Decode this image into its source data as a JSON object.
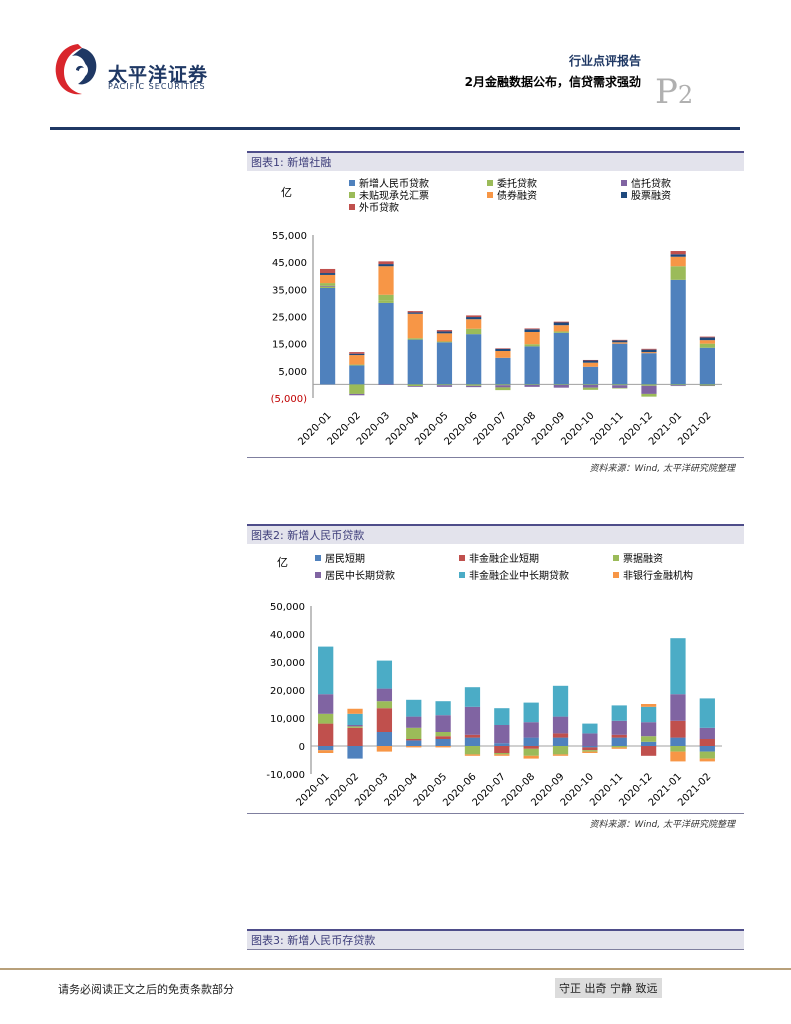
{
  "header": {
    "company_name": "太平洋证券",
    "company_name_en": "PACIFIC SECURITIES",
    "report_type": "行业点评报告",
    "report_title": "2月金融数据公布，信贷需求强劲",
    "page_letter": "P",
    "page_number": "2"
  },
  "figures": [
    {
      "title": "图表1:  新增社融",
      "source": "资料来源：Wind, 太平洋研究院整理"
    },
    {
      "title": "图表2:  新增人民币贷款",
      "source": "资料来源：Wind, 太平洋研究院整理"
    },
    {
      "title": "图表3:  新增人民币存贷款"
    }
  ],
  "footer": {
    "left": "请务必阅读正文之后的免责条款部分",
    "right": "守正 出奇 宁静 致远"
  },
  "colors": {
    "navy": "#1f3864",
    "blue": "#4f81bd",
    "red": "#c0504d",
    "green": "#9bbb59",
    "purple": "#8064a2",
    "teal": "#4bacc6",
    "orange": "#f79646",
    "darkblue": "#1f497d"
  },
  "chart_data": [
    {
      "type": "bar",
      "stacked": true,
      "ylabel": "亿",
      "ylim": [
        -5000,
        55000
      ],
      "yticks": [
        -5000,
        5000,
        15000,
        25000,
        35000,
        45000,
        55000
      ],
      "ytick_labels": [
        "(5,000)",
        "5,000",
        "15,000",
        "25,000",
        "35,000",
        "45,000",
        "55,000"
      ],
      "legend_position": "top",
      "categories": [
        "2020-01",
        "2020-02",
        "2020-03",
        "2020-04",
        "2020-05",
        "2020-06",
        "2020-07",
        "2020-08",
        "2020-09",
        "2020-10",
        "2020-11",
        "2020-12",
        "2021-01",
        "2021-02"
      ],
      "series": [
        {
          "name": "新增人民币贷款",
          "color": "#4f81bd",
          "values": [
            35500,
            7000,
            30000,
            16500,
            15500,
            18500,
            9800,
            14000,
            19000,
            6500,
            15000,
            11500,
            38500,
            13500
          ]
        },
        {
          "name": "委托贷款",
          "color": "#9bbb59",
          "values": [
            500,
            -3500,
            1000,
            -600,
            -300,
            -500,
            -300,
            -200,
            -200,
            -200,
            -300,
            -500,
            -300,
            -400
          ]
        },
        {
          "name": "信托贷款",
          "color": "#8064a2",
          "values": [
            300,
            -500,
            -100,
            -300,
            -600,
            -500,
            -800,
            -700,
            -1000,
            -1000,
            -1000,
            -3000,
            -300,
            -200
          ]
        },
        {
          "name": "未贴现承兑汇票",
          "color": "#9bbb59",
          "values": [
            1000,
            300,
            2000,
            500,
            300,
            2000,
            -1000,
            800,
            500,
            -800,
            -200,
            -1000,
            5000,
            1500
          ]
        },
        {
          "name": "债券融资",
          "color": "#f79646",
          "values": [
            3000,
            3500,
            10500,
            9000,
            3000,
            3500,
            2500,
            4500,
            2300,
            1500,
            500,
            400,
            3500,
            1300
          ]
        },
        {
          "name": "股票融资",
          "color": "#1f497d",
          "values": [
            700,
            500,
            800,
            500,
            700,
            800,
            800,
            1000,
            1000,
            800,
            700,
            900,
            900,
            1000
          ]
        },
        {
          "name": "外币贷款",
          "color": "#c0504d",
          "values": [
            1500,
            600,
            1000,
            500,
            500,
            600,
            200,
            300,
            300,
            200,
            200,
            300,
            1200,
            300
          ]
        }
      ]
    },
    {
      "type": "bar",
      "stacked": true,
      "ylabel": "亿",
      "ylim": [
        -10000,
        50000
      ],
      "yticks": [
        -10000,
        0,
        10000,
        20000,
        30000,
        40000,
        50000
      ],
      "ytick_labels": [
        "-10,000",
        "0",
        "10,000",
        "20,000",
        "30,000",
        "40,000",
        "50,000"
      ],
      "legend_position": "top",
      "categories": [
        "2020-01",
        "2020-02",
        "2020-03",
        "2020-04",
        "2020-05",
        "2020-06",
        "2020-07",
        "2020-08",
        "2020-09",
        "2020-10",
        "2020-11",
        "2020-12",
        "2021-01",
        "2021-02"
      ],
      "series": [
        {
          "name": "居民短期",
          "color": "#4f81bd",
          "values": [
            -1500,
            -4500,
            5000,
            2000,
            2500,
            3000,
            1000,
            3000,
            3000,
            -500,
            3000,
            1500,
            3000,
            -2000
          ]
        },
        {
          "name": "非金融企业短期",
          "color": "#c0504d",
          "values": [
            8000,
            6500,
            8500,
            500,
            1000,
            1000,
            -2500,
            -1000,
            1500,
            -1000,
            1000,
            -3500,
            6000,
            2500
          ]
        },
        {
          "name": "票据融资",
          "color": "#9bbb59",
          "values": [
            3500,
            500,
            2500,
            4000,
            1500,
            -3000,
            -500,
            -2500,
            -3000,
            -500,
            -500,
            2000,
            -2000,
            -2500
          ]
        },
        {
          "name": "居民中长期贷款",
          "color": "#8064a2",
          "values": [
            7000,
            500,
            4500,
            4000,
            6000,
            10000,
            6500,
            5500,
            6000,
            4500,
            5000,
            5000,
            9500,
            4000
          ]
        },
        {
          "name": "非金融企业中长期贷款",
          "color": "#4bacc6",
          "values": [
            17000,
            4000,
            10000,
            6000,
            5000,
            7000,
            6000,
            7000,
            11000,
            3500,
            5500,
            5500,
            20000,
            10500
          ]
        },
        {
          "name": "非银行金融机构",
          "color": "#f79646",
          "values": [
            -1000,
            1800,
            -2000,
            -500,
            -500,
            -500,
            -500,
            -1000,
            -500,
            -500,
            -500,
            1000,
            -3500,
            -1000
          ]
        }
      ]
    }
  ]
}
